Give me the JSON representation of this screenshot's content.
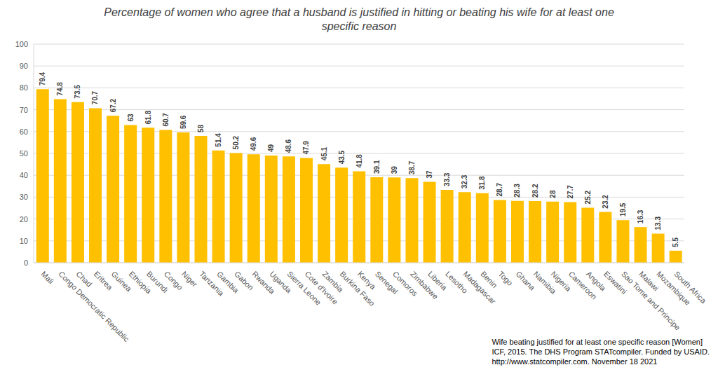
{
  "chart_data": {
    "type": "bar",
    "title": "Percentage of women who agree that a husband is justified in hitting or beating his wife for at least one specific reason",
    "categories": [
      "Mali",
      "Congo Democratic Republic",
      "Chad",
      "Eritrea",
      "Guinea",
      "Ethiopia",
      "Burundi",
      "Congo",
      "Niger",
      "Tanzania",
      "Gambia",
      "Gabon",
      "Rwanda",
      "Uganda",
      "Sierra Leone",
      "Cote d'Ivoire",
      "Zambia",
      "Burkina Faso",
      "Kenya",
      "Senegal",
      "Comoros",
      "Zimbabwe",
      "Liberia",
      "Lesotho",
      "Madagascar",
      "Benin",
      "Togo",
      "Ghana",
      "Namibia",
      "Nigeria",
      "Cameroon",
      "Angola",
      "Eswatini",
      "Sao Tome and Principe",
      "Malawi",
      "Mozambique",
      "South Africa"
    ],
    "values": [
      79.4,
      74.8,
      73.5,
      70.7,
      67.2,
      63,
      61.8,
      60.7,
      59.6,
      58,
      51.4,
      50.2,
      49.6,
      49,
      48.6,
      47.9,
      45.1,
      43.5,
      41.8,
      39.1,
      39,
      38.7,
      37,
      33.3,
      32.3,
      31.8,
      28.7,
      28.3,
      28.2,
      28,
      27.7,
      25.2,
      23.2,
      19.5,
      16.3,
      13.3,
      5.5
    ],
    "color": "#FFC000",
    "ylim": [
      0,
      100
    ],
    "yticks": [
      0,
      10,
      20,
      30,
      40,
      50,
      60,
      70,
      80,
      90,
      100
    ],
    "grid": true,
    "data_labels": true,
    "annotations": [
      "Wife beating justified for at least one specific reason [Women]",
      "ICF, 2015. The DHS Program STATcompiler. Funded by USAID.",
      "http://www.statcompiler.com. November 18 2021"
    ]
  }
}
